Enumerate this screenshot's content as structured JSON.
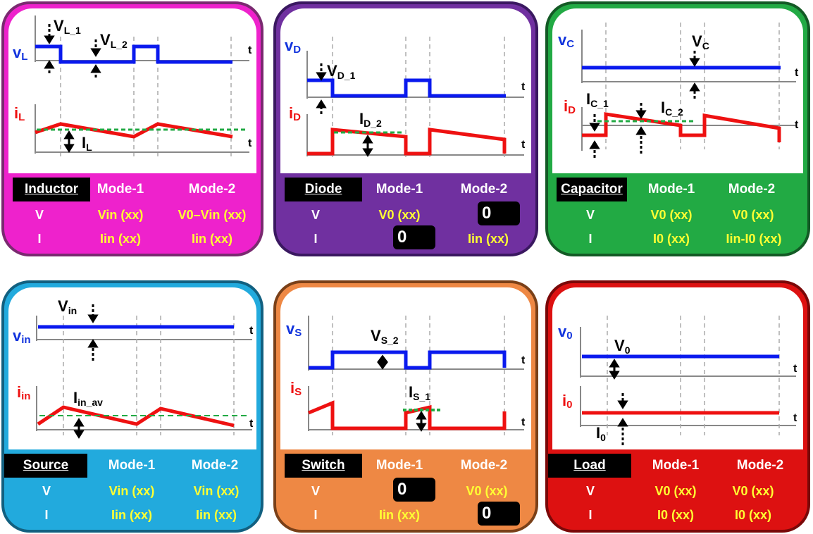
{
  "inductor": {
    "color": "#ee22cc",
    "v_axis": "v",
    "v_sub": "L",
    "i_axis": "i",
    "i_sub": "L",
    "t": "t",
    "ann": {
      "v1": "V",
      "v1s": "L_1",
      "v2": "V",
      "v2s": "L_2",
      "i1": "I",
      "i1s": "L"
    },
    "table": {
      "label": "Inductor",
      "mode1": "Mode-1",
      "mode2": "Mode-2",
      "r1": "V",
      "r2": "I",
      "v_m1": "Vin  (xx)",
      "v_m2": "V0–Vin (xx)",
      "i_m1": "Iin (xx)",
      "i_m2": "Iin (xx)"
    }
  },
  "diode": {
    "color": "#7030a0",
    "v_axis": "v",
    "v_sub": "D",
    "i_axis": "i",
    "i_sub": "D",
    "t": "t",
    "ann": {
      "v1": "V",
      "v1s": "D_1",
      "i1": "I",
      "i1s": "D_2"
    },
    "table": {
      "label": "Diode",
      "mode1": "Mode-1",
      "mode2": "Mode-2",
      "r1": "V",
      "r2": "I",
      "v_m1": "V0 (xx)",
      "v_m2": "0",
      "i_m1": "0",
      "i_m2": "Iin (xx)"
    }
  },
  "capacitor": {
    "color": "#22aa44",
    "v_axis": "v",
    "v_sub": "C",
    "i_axis": "i",
    "i_sub": "D",
    "t": "t",
    "ann": {
      "v1": "V",
      "v1s": "C",
      "i1": "I",
      "i1s": "C_1",
      "i2": "I",
      "i2s": "C_2"
    },
    "table": {
      "label": "Capacitor",
      "mode1": "Mode-1",
      "mode2": "Mode-2",
      "r1": "V",
      "r2": "I",
      "v_m1": "V0 (xx)",
      "v_m2": "V0 (xx)",
      "i_m1": "I0 (xx)",
      "i_m2": "Iin-I0 (xx)"
    }
  },
  "source": {
    "color": "#22aadd",
    "v_axis": "v",
    "v_sub": "in",
    "i_axis": "i",
    "i_sub": "in",
    "t": "t",
    "ann": {
      "v1": "V",
      "v1s": "in",
      "i1": "I",
      "i1s": "in_av"
    },
    "table": {
      "label": "Source",
      "mode1": "Mode-1",
      "mode2": "Mode-2",
      "r1": "V",
      "r2": "I",
      "v_m1": "Vin (xx)",
      "v_m2": "Vin (xx)",
      "i_m1": "Iin (xx)",
      "i_m2": "Iin (xx)"
    }
  },
  "switch": {
    "color": "#ee8844",
    "v_axis": "v",
    "v_sub": "S",
    "i_axis": "i",
    "i_sub": "S",
    "t": "t",
    "ann": {
      "v1": "V",
      "v1s": "S_2",
      "i1": "I",
      "i1s": "S_1"
    },
    "table": {
      "label": "Switch",
      "mode1": "Mode-1",
      "mode2": "Mode-2",
      "r1": "V",
      "r2": "I",
      "v_m1": "0",
      "v_m2": "V0 (xx)",
      "i_m1": "Iin (xx)",
      "i_m2": "0"
    }
  },
  "load": {
    "color": "#dd1111",
    "v_axis": "v",
    "v_sub": "0",
    "i_axis": "i",
    "i_sub": "0",
    "t": "t",
    "ann": {
      "v1": "V",
      "v1s": "0",
      "i1": "I",
      "i1s": "0"
    },
    "table": {
      "label": "Load",
      "mode1": "Mode-1",
      "mode2": "Mode-2",
      "r1": "V",
      "r2": "I",
      "v_m1": "V0 (xx)",
      "v_m2": "V0 (xx)",
      "i_m1": "I0 (xx)",
      "i_m2": "I0 (xx)"
    }
  }
}
